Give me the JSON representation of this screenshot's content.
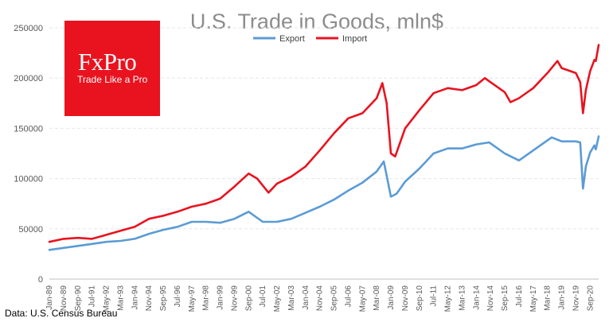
{
  "logo": {
    "brand": "FxPro",
    "tagline": "Trade Like a Pro"
  },
  "source_note": "Data: U.S. Census Bureau",
  "colors": {
    "export": "#5b9bd5",
    "import": "#e8131f",
    "grid": "#e6e6e6"
  },
  "chart_data": {
    "type": "line",
    "title": "U.S. Trade in Goods, mln$",
    "xlabel": "",
    "ylabel": "",
    "ylim": [
      0,
      250000
    ],
    "yticks": [
      0,
      50000,
      100000,
      150000,
      200000,
      250000
    ],
    "ytick_labels": [
      "0",
      "50000",
      "100000",
      "150000",
      "200000",
      "250000"
    ],
    "legend_position": "top-center",
    "grid": true,
    "x_period": {
      "start": "Jan-89",
      "end": "Mar-21",
      "frequency": "monthly"
    },
    "x_tick_labels": [
      "Jan-89",
      "Nov-89",
      "Sep-90",
      "Jul-91",
      "May-92",
      "Mar-93",
      "Jan-94",
      "Nov-94",
      "Sep-95",
      "Jul-96",
      "May-97",
      "Mar-98",
      "Jan-99",
      "Nov-99",
      "Sep-00",
      "Jul-01",
      "May-02",
      "Mar-03",
      "Jan-04",
      "Nov-04",
      "Sep-05",
      "Jul-06",
      "May-07",
      "Mar-08",
      "Jan-09",
      "Nov-09",
      "Sep-10",
      "Jul-11",
      "May-12",
      "Mar-13",
      "Jan-14",
      "Nov-14",
      "Sep-15",
      "Jul-16",
      "May-17",
      "Mar-18",
      "Jan-19",
      "Nov-19",
      "Sep-20"
    ],
    "series": [
      {
        "name": "Export",
        "points": [
          [
            "Jan-89",
            29000
          ],
          [
            "Nov-89",
            31000
          ],
          [
            "Sep-90",
            33000
          ],
          [
            "Jul-91",
            35000
          ],
          [
            "May-92",
            37000
          ],
          [
            "Mar-93",
            38000
          ],
          [
            "Jan-94",
            40000
          ],
          [
            "Nov-94",
            45000
          ],
          [
            "Sep-95",
            49000
          ],
          [
            "Jul-96",
            52000
          ],
          [
            "May-97",
            57000
          ],
          [
            "Mar-98",
            57000
          ],
          [
            "Jan-99",
            56000
          ],
          [
            "Nov-99",
            60000
          ],
          [
            "Sep-00",
            67000
          ],
          [
            "Jul-01",
            57000
          ],
          [
            "May-02",
            57000
          ],
          [
            "Mar-03",
            60000
          ],
          [
            "Jan-04",
            66000
          ],
          [
            "Nov-04",
            72000
          ],
          [
            "Sep-05",
            79000
          ],
          [
            "Jul-06",
            88000
          ],
          [
            "May-07",
            96000
          ],
          [
            "Mar-08",
            107000
          ],
          [
            "Aug-08",
            117000
          ],
          [
            "Jan-09",
            82000
          ],
          [
            "May-09",
            85000
          ],
          [
            "Nov-09",
            97000
          ],
          [
            "Sep-10",
            110000
          ],
          [
            "Jul-11",
            125000
          ],
          [
            "May-12",
            130000
          ],
          [
            "Mar-13",
            130000
          ],
          [
            "Jan-14",
            134000
          ],
          [
            "Oct-14",
            136000
          ],
          [
            "Sep-15",
            125000
          ],
          [
            "Jul-16",
            118000
          ],
          [
            "May-17",
            128000
          ],
          [
            "Mar-18",
            138000
          ],
          [
            "Jun-18",
            141000
          ],
          [
            "Jan-19",
            137000
          ],
          [
            "Nov-19",
            137000
          ],
          [
            "Feb-20",
            136000
          ],
          [
            "Apr-20",
            90000
          ],
          [
            "Jun-20",
            112000
          ],
          [
            "Sep-20",
            126000
          ],
          [
            "Dec-20",
            133000
          ],
          [
            "Jan-21",
            129000
          ],
          [
            "Mar-21",
            142000
          ]
        ]
      },
      {
        "name": "Import",
        "points": [
          [
            "Jan-89",
            37000
          ],
          [
            "Nov-89",
            40000
          ],
          [
            "Sep-90",
            41000
          ],
          [
            "Jul-91",
            40000
          ],
          [
            "May-92",
            44000
          ],
          [
            "Mar-93",
            48000
          ],
          [
            "Jan-94",
            52000
          ],
          [
            "Nov-94",
            60000
          ],
          [
            "Sep-95",
            63000
          ],
          [
            "Jul-96",
            67000
          ],
          [
            "May-97",
            72000
          ],
          [
            "Mar-98",
            75000
          ],
          [
            "Jan-99",
            80000
          ],
          [
            "Nov-99",
            92000
          ],
          [
            "Sep-00",
            105000
          ],
          [
            "Mar-01",
            100000
          ],
          [
            "Nov-01",
            86000
          ],
          [
            "May-02",
            95000
          ],
          [
            "Mar-03",
            102000
          ],
          [
            "Jan-04",
            112000
          ],
          [
            "Nov-04",
            128000
          ],
          [
            "Sep-05",
            145000
          ],
          [
            "Jul-06",
            160000
          ],
          [
            "May-07",
            165000
          ],
          [
            "Mar-08",
            180000
          ],
          [
            "Jul-08",
            195000
          ],
          [
            "Oct-08",
            175000
          ],
          [
            "Jan-09",
            125000
          ],
          [
            "Apr-09",
            122000
          ],
          [
            "Nov-09",
            150000
          ],
          [
            "Sep-10",
            168000
          ],
          [
            "Jul-11",
            185000
          ],
          [
            "May-12",
            190000
          ],
          [
            "Mar-13",
            188000
          ],
          [
            "Jan-14",
            193000
          ],
          [
            "Jul-14",
            200000
          ],
          [
            "Nov-14",
            196000
          ],
          [
            "Sep-15",
            186000
          ],
          [
            "Jan-16",
            176000
          ],
          [
            "Jul-16",
            180000
          ],
          [
            "May-17",
            190000
          ],
          [
            "Mar-18",
            205000
          ],
          [
            "Oct-18",
            217000
          ],
          [
            "Jan-19",
            210000
          ],
          [
            "Nov-19",
            205000
          ],
          [
            "Feb-20",
            196000
          ],
          [
            "Apr-20",
            165000
          ],
          [
            "Jun-20",
            188000
          ],
          [
            "Sep-20",
            207000
          ],
          [
            "Dec-20",
            218000
          ],
          [
            "Jan-21",
            217000
          ],
          [
            "Mar-21",
            233000
          ]
        ]
      }
    ]
  }
}
